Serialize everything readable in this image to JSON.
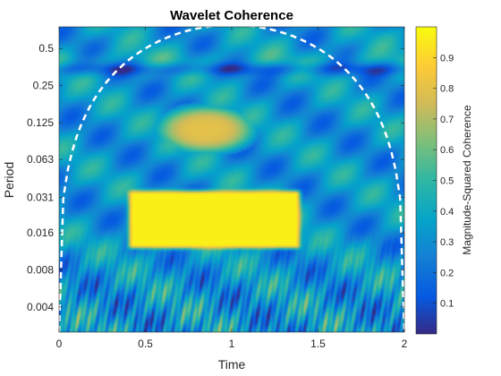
{
  "chart_data": {
    "type": "heatmap",
    "title": "Wavelet Coherence",
    "xlabel": "Time",
    "ylabel": "Period",
    "xlim": [
      0,
      2
    ],
    "x_ticks": [
      0,
      0.5,
      1,
      1.5,
      2
    ],
    "x_tick_labels": [
      "0",
      "0.5",
      "1",
      "1.5",
      "2"
    ],
    "y_scale": "log2",
    "y_ticks": [
      0.5,
      0.25,
      0.125,
      0.063,
      0.031,
      0.016,
      0.008,
      0.004
    ],
    "y_tick_labels": [
      "0.5",
      "0.25",
      "0.125",
      "0.063",
      "0.031",
      "0.016",
      "0.008",
      "0.004"
    ],
    "ylim": [
      0.0025,
      0.75
    ],
    "colorbar": {
      "label": "Magnitude-Squared Coherence",
      "range": [
        0,
        1
      ],
      "ticks": [
        0.1,
        0.2,
        0.3,
        0.4,
        0.5,
        0.6,
        0.7,
        0.8,
        0.9
      ],
      "tick_labels": [
        "0.1",
        "0.2",
        "0.3",
        "0.4",
        "0.5",
        "0.6",
        "0.7",
        "0.8",
        "0.9"
      ],
      "colormap": "parula"
    },
    "regions": [
      {
        "shape": "ellipse",
        "x_center": 0.85,
        "period_center": 0.11,
        "value": 0.75
      },
      {
        "shape": "rectangle",
        "x_range": [
          0.4,
          1.4
        ],
        "period_range": [
          0.012,
          0.035
        ],
        "value": 0.97
      },
      {
        "shape": "band",
        "period_center": 0.38,
        "value": 0.45
      }
    ],
    "cone_of_influence": {
      "style": "dashed",
      "color": "#ffffff",
      "x_range": [
        0,
        2
      ],
      "apex_x": 1
    }
  }
}
